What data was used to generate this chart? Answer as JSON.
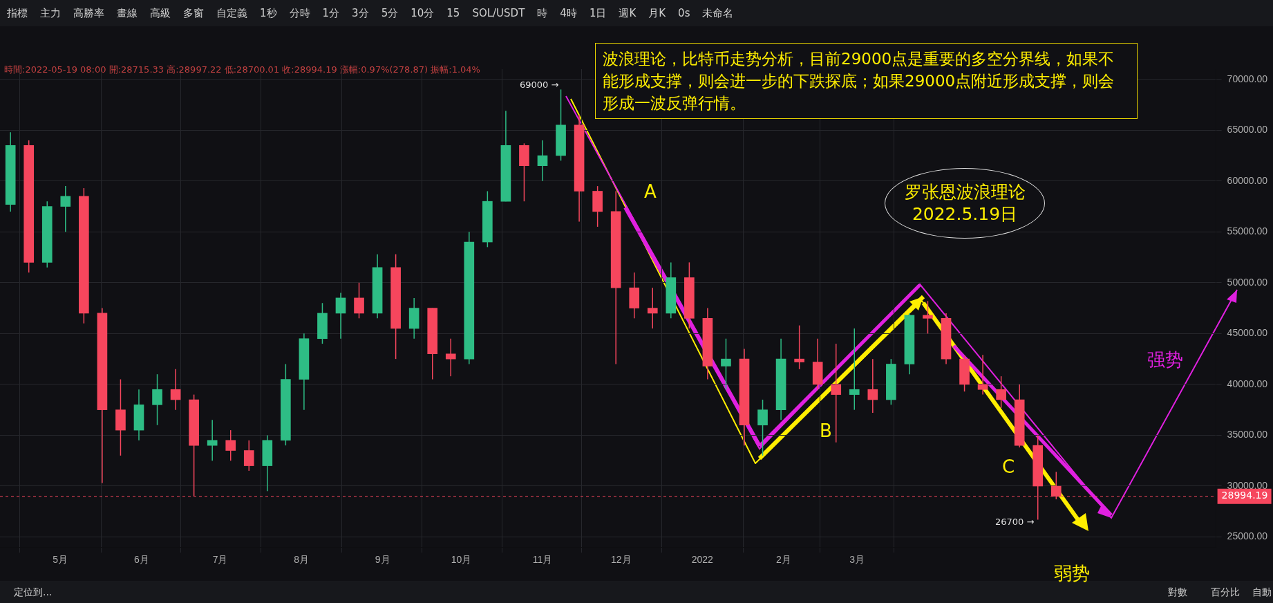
{
  "chart_data": {
    "type": "candlestick",
    "title": "波浪理论，比特币走势分析，目前29000点是重要的多空分界线，如果不能形成支撑，则会进一步的下跌探底；如果29000点附近形成支撑，则会形成一波反弹行情。",
    "subtitle": "時間:2022-05-19 08:00 開:28715.33 高:28997.22 低:28700.01 收:28994.19 漲幅:0.97%(278.87) 振幅:1.04%",
    "x": [
      "2021-04-12",
      "2021-04-19",
      "2021-04-26",
      "2021-05-03",
      "2021-05-10",
      "2021-05-17",
      "2021-05-24",
      "2021-05-31",
      "2021-06-07",
      "2021-06-14",
      "2021-06-21",
      "2021-06-28",
      "2021-07-05",
      "2021-07-12",
      "2021-07-19",
      "2021-07-26",
      "2021-08-02",
      "2021-08-09",
      "2021-08-16",
      "2021-08-23",
      "2021-08-30",
      "2021-09-06",
      "2021-09-13",
      "2021-09-20",
      "2021-09-27",
      "2021-10-04",
      "2021-10-11",
      "2021-10-18",
      "2021-10-25",
      "2021-11-01",
      "2021-11-08",
      "2021-11-15",
      "2021-11-22",
      "2021-11-29",
      "2021-12-06",
      "2021-12-13",
      "2021-12-20",
      "2021-12-27",
      "2022-01-03",
      "2022-01-10",
      "2022-01-17",
      "2022-01-24",
      "2022-01-31",
      "2022-02-07",
      "2022-02-14",
      "2022-02-21",
      "2022-02-28",
      "2022-03-07",
      "2022-03-14",
      "2022-03-21",
      "2022-03-28",
      "2022-04-04",
      "2022-04-11",
      "2022-04-18",
      "2022-04-25",
      "2022-05-02",
      "2022-05-09",
      "2022-05-16"
    ],
    "ohlc": [
      [
        57700,
        64800,
        57000,
        63500
      ],
      [
        63500,
        64000,
        51000,
        52000
      ],
      [
        52000,
        58000,
        51500,
        57500
      ],
      [
        57500,
        59500,
        55000,
        58500
      ],
      [
        58500,
        59300,
        46000,
        47000
      ],
      [
        47000,
        47500,
        30300,
        37500
      ],
      [
        37500,
        40500,
        33000,
        35500
      ],
      [
        35500,
        39500,
        34500,
        38000
      ],
      [
        38000,
        41000,
        36000,
        39500
      ],
      [
        39500,
        41500,
        37500,
        38500
      ],
      [
        38500,
        39000,
        29000,
        34000
      ],
      [
        34000,
        36500,
        32500,
        34500
      ],
      [
        34500,
        35500,
        32500,
        33500
      ],
      [
        33500,
        34500,
        31500,
        32000
      ],
      [
        32000,
        35000,
        29500,
        34500
      ],
      [
        34500,
        42000,
        34000,
        40500
      ],
      [
        40500,
        45000,
        37500,
        44500
      ],
      [
        44500,
        48000,
        44000,
        47000
      ],
      [
        47000,
        49000,
        44500,
        48500
      ],
      [
        48500,
        50000,
        46500,
        47000
      ],
      [
        47000,
        52800,
        46500,
        51500
      ],
      [
        51500,
        52800,
        42500,
        45500
      ],
      [
        45500,
        48500,
        44500,
        47500
      ],
      [
        47500,
        47500,
        40500,
        43000
      ],
      [
        43000,
        44500,
        40800,
        42500
      ],
      [
        42500,
        55000,
        42000,
        54000
      ],
      [
        54000,
        59000,
        53500,
        58000
      ],
      [
        58000,
        66900,
        58000,
        63500
      ],
      [
        63500,
        63700,
        58000,
        61500
      ],
      [
        61500,
        64000,
        60000,
        62500
      ],
      [
        62500,
        69000,
        62000,
        65500
      ],
      [
        65500,
        66500,
        56000,
        59000
      ],
      [
        59000,
        59500,
        55500,
        57000
      ],
      [
        57000,
        59000,
        42000,
        49500
      ],
      [
        49500,
        51000,
        46500,
        47500
      ],
      [
        47500,
        49500,
        45500,
        47000
      ],
      [
        47000,
        52000,
        46500,
        50500
      ],
      [
        50500,
        52000,
        45500,
        46500
      ],
      [
        46500,
        47500,
        40500,
        41800
      ],
      [
        41800,
        44500,
        39500,
        42500
      ],
      [
        42500,
        43500,
        34000,
        36000
      ],
      [
        36000,
        38500,
        33000,
        37500
      ],
      [
        37500,
        44500,
        36500,
        42500
      ],
      [
        42500,
        45800,
        41500,
        42200
      ],
      [
        42200,
        44500,
        39500,
        40000
      ],
      [
        40000,
        44000,
        34300,
        39000
      ],
      [
        39000,
        45500,
        37500,
        39500
      ],
      [
        39500,
        42500,
        37200,
        38500
      ],
      [
        38500,
        42500,
        38000,
        42000
      ],
      [
        42000,
        47000,
        41000,
        46800
      ],
      [
        46800,
        48200,
        45000,
        46500
      ],
      [
        46500,
        47000,
        42000,
        42500
      ],
      [
        42500,
        42800,
        39300,
        40000
      ],
      [
        40000,
        42900,
        39000,
        39500
      ],
      [
        39500,
        40800,
        37700,
        38500
      ],
      [
        38500,
        40000,
        33800,
        34000
      ],
      [
        34000,
        35000,
        26700,
        30000
      ],
      [
        30000,
        31400,
        28700,
        28994.19
      ]
    ],
    "colors": [
      "#2ebd85",
      "#f6465d",
      "#2ebd85",
      "#2ebd85",
      "#f6465d",
      "#f6465d",
      "#f6465d",
      "#2ebd85",
      "#2ebd85",
      "#f6465d",
      "#f6465d",
      "#2ebd85",
      "#f6465d",
      "#f6465d",
      "#2ebd85",
      "#2ebd85",
      "#2ebd85",
      "#2ebd85",
      "#2ebd85",
      "#f6465d",
      "#2ebd85",
      "#f6465d",
      "#2ebd85",
      "#f6465d",
      "#f6465d",
      "#2ebd85",
      "#2ebd85",
      "#2ebd85",
      "#f6465d",
      "#2ebd85",
      "#2ebd85",
      "#f6465d",
      "#f6465d",
      "#f6465d",
      "#f6465d",
      "#f6465d",
      "#2ebd85",
      "#f6465d",
      "#f6465d",
      "#2ebd85",
      "#f6465d",
      "#2ebd85",
      "#2ebd85",
      "#f6465d",
      "#f6465d",
      "#f6465d",
      "#2ebd85",
      "#f6465d",
      "#2ebd85",
      "#2ebd85",
      "#f6465d",
      "#f6465d",
      "#f6465d",
      "#f6465d",
      "#f6465d",
      "#f6465d",
      "#f6465d",
      "#f6465d"
    ],
    "xlim": [
      "2021-04-08",
      "2022-07-16"
    ],
    "xticks": [
      {
        "value": "2021-05-01",
        "label": "5月"
      },
      {
        "value": "2021-06-01",
        "label": "6月"
      },
      {
        "value": "2021-07-01",
        "label": "7月"
      },
      {
        "value": "2021-08-01",
        "label": "8月"
      },
      {
        "value": "2021-09-01",
        "label": "9月"
      },
      {
        "value": "2021-10-01",
        "label": "10月"
      },
      {
        "value": "2021-11-01",
        "label": "11月"
      },
      {
        "value": "2021-12-01",
        "label": "12月"
      },
      {
        "value": "2022-01-01",
        "label": "2022"
      },
      {
        "value": "2022-02-01",
        "label": "2月"
      },
      {
        "value": "2022-03-01",
        "label": "3月"
      }
    ],
    "ylim": [
      24000,
      71000
    ],
    "yticks": [
      {
        "value": 25000,
        "label": "25000.00"
      },
      {
        "value": 30000,
        "label": "30000.00"
      },
      {
        "value": 35000,
        "label": "35000.00"
      },
      {
        "value": 40000,
        "label": "40000.00"
      },
      {
        "value": 45000,
        "label": "45000.00"
      },
      {
        "value": 50000,
        "label": "50000.00"
      },
      {
        "value": 55000,
        "label": "55000.00"
      },
      {
        "value": 60000,
        "label": "60000.00"
      },
      {
        "value": 65000,
        "label": "65000.00"
      },
      {
        "value": 70000,
        "label": "70000.00"
      }
    ],
    "grid": true,
    "ref_lines": [
      {
        "axis": "y",
        "value": 28994.19,
        "label": "28994.19",
        "color": "#f6465d",
        "line_style": "dashed"
      }
    ],
    "annotations": [
      "69000 →",
      "26700 →",
      "罗张恩波浪理论\n2022.5.19日",
      "A",
      "B",
      "C",
      "强势",
      "弱势",
      "指標",
      "主力",
      "高勝率",
      "畫線",
      "高級",
      "多窗",
      "自定義",
      "1秒",
      "分時",
      "1分",
      "3分",
      "5分",
      "10分",
      "15",
      "SOL/USDT",
      "時",
      "4時",
      "1日",
      "週K",
      "月K",
      "0s",
      "未命名",
      "定位到...",
      "對數",
      "百分比",
      "自動"
    ]
  }
}
